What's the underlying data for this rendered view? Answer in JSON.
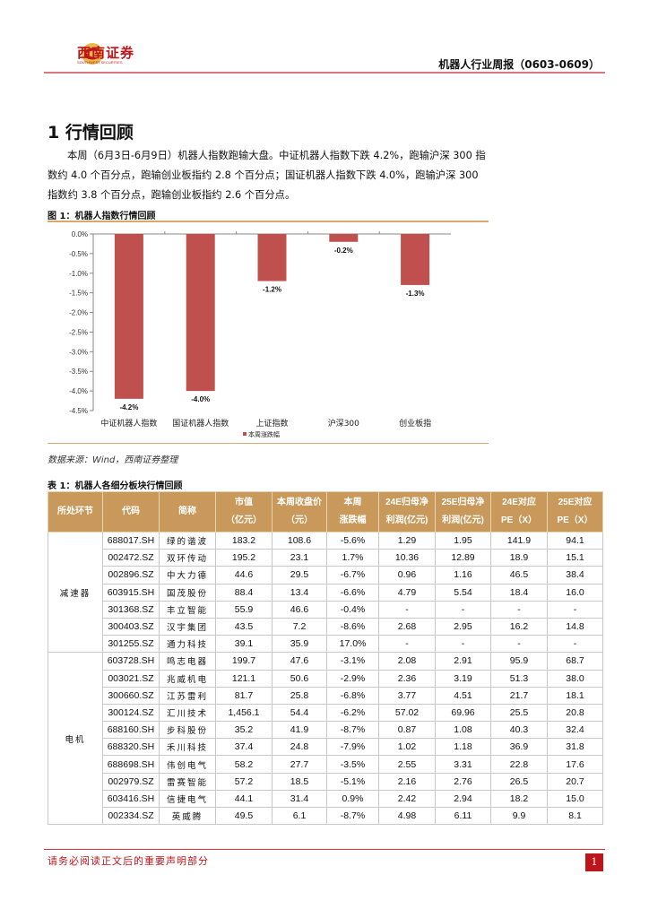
{
  "header": {
    "logo_text": "西南证券",
    "logo_sub": "SOUTHWEST SECURITIES",
    "report_title": "机器人行业周报（0603-0609）",
    "brand_color": "#c0141b"
  },
  "section": {
    "title": "1 行情回顾",
    "paragraph": "本周（6月3日-6月9日）机器人指数跑输大盘。中证机器人指数下跌 4.2%，跑输沪深 300 指数约 4.0 个百分点，跑输创业板指约 2.8 个百分点；国证机器人指数下跌 4.0%，跑输沪深 300 指数约 3.8 个百分点，跑输创业板指约 2.6 个百分点。"
  },
  "figure": {
    "title": "图 1：机器人指数行情回顾",
    "source": "数据来源：Wind，西南证券整理"
  },
  "chart_data": {
    "type": "bar",
    "categories": [
      "中证机器人指数",
      "国证机器人指数",
      "上证指数",
      "沪深300",
      "创业板指"
    ],
    "series": [
      {
        "name": "本周涨跌幅",
        "values": [
          -4.2,
          -4.0,
          -1.2,
          -0.2,
          -1.3
        ],
        "labels": [
          "-4.2%",
          "-4.0%",
          "-1.2%",
          "-0.2%",
          "-1.3%"
        ],
        "color": "#c0504d"
      }
    ],
    "ylim": [
      -4.5,
      0
    ],
    "yticks": [
      "0.0%",
      "-0.5%",
      "-1.0%",
      "-1.5%",
      "-2.0%",
      "-2.5%",
      "-3.0%",
      "-3.5%",
      "-4.0%",
      "-4.5%"
    ],
    "legend": "bottom",
    "grid": false
  },
  "table": {
    "title": "表 1：机器人各细分板块行情回顾",
    "headers": [
      [
        "所处环节"
      ],
      [
        "代码"
      ],
      [
        "简称"
      ],
      [
        "市值",
        "（亿元）"
      ],
      [
        "本周收盘价",
        "（元）"
      ],
      [
        "本周",
        "涨跌幅"
      ],
      [
        "24E归母净",
        "利润(亿元)"
      ],
      [
        "25E归母净",
        "利润(亿元)"
      ],
      [
        "24E对应",
        "PE（X）"
      ],
      [
        "25E对应",
        "PE（X）"
      ]
    ],
    "groups": [
      {
        "segment": "减速器",
        "rows": [
          [
            "688017.SH",
            "绿的谐波",
            "183.2",
            "108.6",
            "-5.6%",
            "1.29",
            "1.95",
            "141.9",
            "94.1"
          ],
          [
            "002472.SZ",
            "双环传动",
            "195.2",
            "23.1",
            "1.7%",
            "10.36",
            "12.89",
            "18.9",
            "15.1"
          ],
          [
            "002896.SZ",
            "中大力德",
            "44.6",
            "29.5",
            "-6.7%",
            "0.96",
            "1.16",
            "46.5",
            "38.4"
          ],
          [
            "603915.SH",
            "国茂股份",
            "88.4",
            "13.4",
            "-6.6%",
            "4.79",
            "5.54",
            "18.4",
            "16.0"
          ],
          [
            "301368.SZ",
            "丰立智能",
            "55.9",
            "46.6",
            "-0.4%",
            "-",
            "-",
            "-",
            "-"
          ],
          [
            "300403.SZ",
            "汉宇集团",
            "43.5",
            "7.2",
            "-8.6%",
            "2.68",
            "2.95",
            "16.2",
            "14.8"
          ],
          [
            "301255.SZ",
            "通力科技",
            "39.1",
            "35.9",
            "17.0%",
            "-",
            "-",
            "-",
            "-"
          ]
        ]
      },
      {
        "segment": "电机",
        "rows": [
          [
            "603728.SH",
            "鸣志电器",
            "199.7",
            "47.6",
            "-3.1%",
            "2.08",
            "2.91",
            "95.9",
            "68.7"
          ],
          [
            "003021.SZ",
            "兆威机电",
            "121.1",
            "50.6",
            "-2.9%",
            "2.36",
            "3.19",
            "51.3",
            "38.0"
          ],
          [
            "300660.SZ",
            "江苏雷利",
            "81.7",
            "25.8",
            "-6.8%",
            "3.77",
            "4.51",
            "21.7",
            "18.1"
          ],
          [
            "300124.SZ",
            "汇川技术",
            "1,456.1",
            "54.4",
            "-6.2%",
            "57.02",
            "69.96",
            "25.5",
            "20.8"
          ],
          [
            "688160.SH",
            "步科股份",
            "35.2",
            "41.9",
            "-8.7%",
            "0.87",
            "1.08",
            "40.3",
            "32.4"
          ],
          [
            "688320.SH",
            "禾川科技",
            "37.4",
            "24.8",
            "-7.9%",
            "1.02",
            "1.18",
            "36.9",
            "31.8"
          ],
          [
            "688698.SH",
            "伟创电气",
            "58.2",
            "27.7",
            "-3.5%",
            "2.55",
            "3.31",
            "22.8",
            "17.6"
          ],
          [
            "002979.SZ",
            "雷赛智能",
            "57.2",
            "18.5",
            "-5.1%",
            "2.16",
            "2.76",
            "26.5",
            "20.7"
          ],
          [
            "603416.SH",
            "信捷电气",
            "44.1",
            "31.4",
            "0.9%",
            "2.42",
            "2.94",
            "18.2",
            "15.0"
          ],
          [
            "002334.SZ",
            "英威腾",
            "49.5",
            "6.1",
            "-8.7%",
            "4.98",
            "6.11",
            "9.9",
            "8.1"
          ]
        ]
      }
    ]
  },
  "footer": {
    "disclaimer": "请务必阅读正文后的重要声明部分",
    "page": "1"
  }
}
